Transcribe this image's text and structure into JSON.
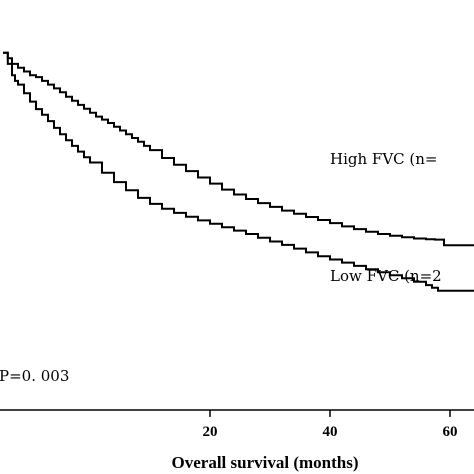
{
  "chart_data": {
    "type": "line",
    "xlabel": "Overall survival (months)",
    "ylabel": "",
    "xlim": [
      -15,
      64
    ],
    "ylim": [
      0.05,
      1.14
    ],
    "x_ticks": [
      20,
      40,
      60
    ],
    "x_tick_labels": [
      "20",
      "40",
      "60"
    ],
    "annotations": [
      {
        "text": "P=0. 003"
      }
    ],
    "grid": false,
    "series": [
      {
        "name": "High FVC (n=",
        "color": "#000000",
        "x": [
          -14.5,
          -13.7,
          -13.0,
          -12.0,
          -11.0,
          -10.0,
          -9.0,
          -8.0,
          -7.0,
          -6.0,
          -5.0,
          -4.0,
          -3.0,
          -2.0,
          -1.0,
          0.0,
          1.0,
          2.0,
          3.0,
          4.0,
          5.0,
          6.0,
          7.0,
          8.0,
          9.0,
          10.0,
          12.0,
          14.0,
          16.0,
          18.0,
          20.0,
          22.0,
          24.0,
          26.0,
          28.0,
          30.0,
          32.0,
          34.0,
          36.0,
          38.0,
          40.0,
          42.0,
          44.0,
          46.0,
          48.0,
          50.0,
          52.0,
          54.0,
          56.0,
          57.5,
          59.0,
          64.0
        ],
        "y": [
          1.0,
          0.985,
          0.97,
          0.96,
          0.95,
          0.94,
          0.935,
          0.925,
          0.915,
          0.905,
          0.895,
          0.883,
          0.872,
          0.861,
          0.851,
          0.84,
          0.83,
          0.822,
          0.813,
          0.803,
          0.793,
          0.783,
          0.773,
          0.763,
          0.752,
          0.741,
          0.72,
          0.702,
          0.685,
          0.668,
          0.652,
          0.636,
          0.623,
          0.611,
          0.6,
          0.59,
          0.58,
          0.572,
          0.563,
          0.555,
          0.547,
          0.538,
          0.531,
          0.524,
          0.518,
          0.513,
          0.509,
          0.506,
          0.504,
          0.503,
          0.488,
          0.488
        ]
      },
      {
        "name": "Low FVC (n=2",
        "color": "#000000",
        "x": [
          -14.5,
          -13.7,
          -13.0,
          -12.5,
          -12.0,
          -11.0,
          -10.0,
          -9.0,
          -8.0,
          -7.0,
          -6.0,
          -5.0,
          -4.0,
          -3.0,
          -2.0,
          -1.0,
          0.0,
          2.0,
          4.0,
          6.0,
          8.0,
          10.0,
          12.0,
          14.0,
          16.0,
          18.0,
          20.0,
          22.0,
          24.0,
          26.0,
          28.0,
          30.0,
          32.0,
          34.0,
          36.0,
          38.0,
          40.0,
          42.0,
          44.0,
          46.0,
          48.0,
          50.0,
          52.0,
          54.0,
          56.0,
          57.0,
          58.0,
          64.0
        ],
        "y": [
          1.0,
          0.97,
          0.94,
          0.925,
          0.915,
          0.892,
          0.87,
          0.85,
          0.835,
          0.818,
          0.8,
          0.783,
          0.767,
          0.752,
          0.737,
          0.722,
          0.708,
          0.681,
          0.656,
          0.634,
          0.614,
          0.598,
          0.585,
          0.574,
          0.564,
          0.554,
          0.545,
          0.536,
          0.527,
          0.518,
          0.508,
          0.498,
          0.489,
          0.479,
          0.469,
          0.459,
          0.45,
          0.442,
          0.433,
          0.424,
          0.416,
          0.408,
          0.4,
          0.391,
          0.382,
          0.375,
          0.367,
          0.367
        ]
      }
    ]
  }
}
